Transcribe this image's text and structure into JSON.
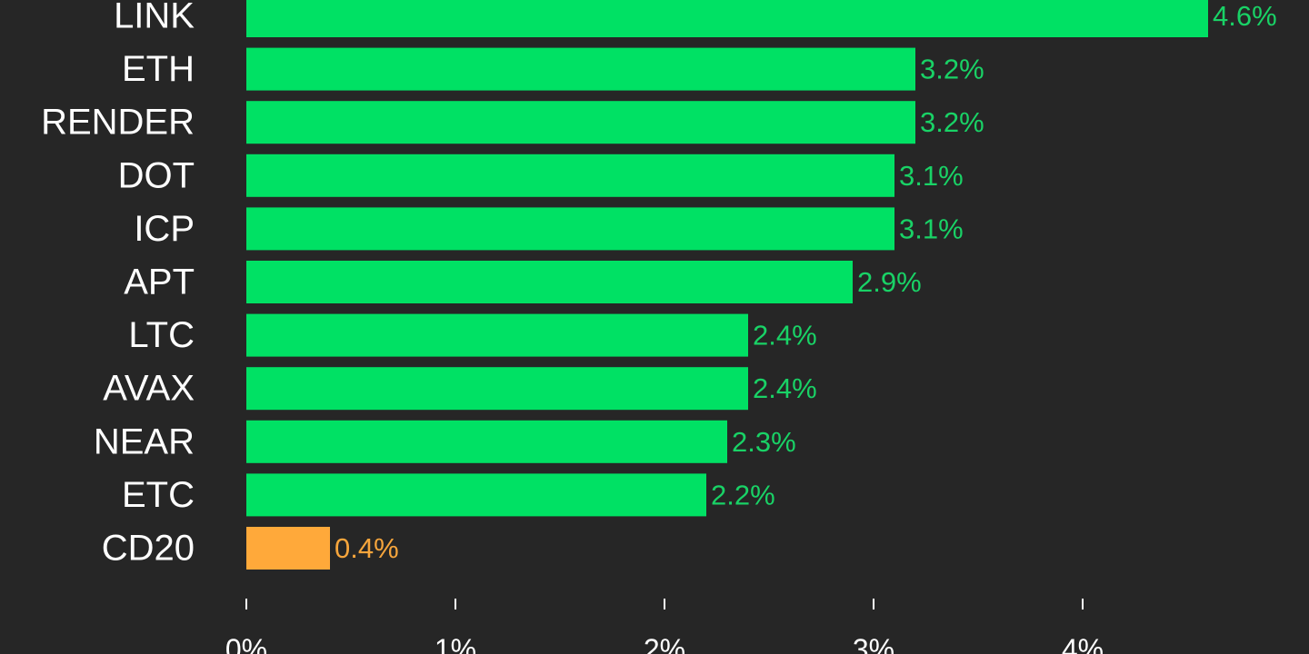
{
  "chart_data": {
    "type": "bar",
    "orientation": "horizontal",
    "categories": [
      "LINK",
      "ETH",
      "RENDER",
      "DOT",
      "ICP",
      "APT",
      "LTC",
      "AVAX",
      "NEAR",
      "ETC",
      "CD20"
    ],
    "values": [
      4.6,
      3.2,
      3.2,
      3.1,
      3.1,
      2.9,
      2.4,
      2.4,
      2.3,
      2.2,
      0.4
    ],
    "value_labels": [
      "4.6%",
      "3.2%",
      "3.2%",
      "3.1%",
      "3.1%",
      "2.9%",
      "2.4%",
      "2.4%",
      "2.3%",
      "2.2%",
      "0.4%"
    ],
    "colors": [
      "#00e164",
      "#00e164",
      "#00e164",
      "#00e164",
      "#00e164",
      "#00e164",
      "#00e164",
      "#00e164",
      "#00e164",
      "#00e164",
      "#ffa93a"
    ],
    "label_colors": [
      "#19d266",
      "#19d266",
      "#19d266",
      "#19d266",
      "#19d266",
      "#19d266",
      "#19d266",
      "#19d266",
      "#19d266",
      "#19d266",
      "#f6a53c"
    ],
    "x_ticks": [
      0,
      1,
      2,
      3,
      4
    ],
    "x_tick_labels": [
      "0%",
      "1%",
      "2%",
      "3%",
      "4%"
    ],
    "xlim": [
      0,
      4.6
    ],
    "title": "",
    "xlabel": "",
    "ylabel": "",
    "grid": false,
    "background": "#262626"
  }
}
